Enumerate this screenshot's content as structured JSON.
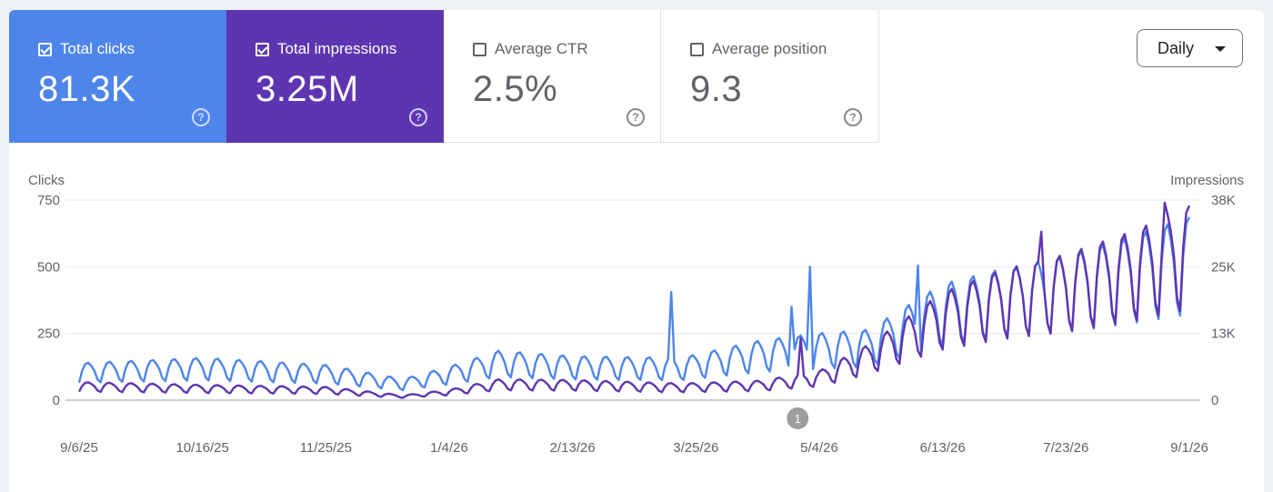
{
  "metrics": [
    {
      "label": "Total clicks",
      "value": "81.3K",
      "checked": true,
      "color": "#4e85ea"
    },
    {
      "label": "Total impressions",
      "value": "3.25M",
      "checked": true,
      "color": "#5e35b1"
    },
    {
      "label": "Average CTR",
      "value": "2.5%",
      "checked": false
    },
    {
      "label": "Average position",
      "value": "9.3",
      "checked": false
    }
  ],
  "help_glyph": "?",
  "period_select": {
    "label": "Daily"
  },
  "annotation_marker": "1",
  "chart_data": {
    "type": "line",
    "y_left_label": "Clicks",
    "y_right_label": "Impressions",
    "y_left_ticks": [
      "750",
      "500",
      "250",
      "0"
    ],
    "y_right_ticks": [
      "38K",
      "25K",
      "13K",
      "0"
    ],
    "ylim_left": [
      0,
      750
    ],
    "ylim_right": [
      0,
      38000
    ],
    "x_tick_labels": [
      "9/6/25",
      "10/16/25",
      "11/25/25",
      "1/4/26",
      "2/13/26",
      "3/25/26",
      "5/4/26",
      "6/13/26",
      "7/23/26",
      "9/1/26"
    ],
    "x_start": "2025-09-06",
    "x_end": "2026-09-01",
    "grid": true,
    "annotation_date": "2026-04-27",
    "series": [
      {
        "name": "Clicks",
        "axis": "left",
        "color": "#4e85ea",
        "anchors": [
          [
            "2025-09-06",
            105
          ],
          [
            "2025-10-16",
            120
          ],
          [
            "2025-11-25",
            100
          ],
          [
            "2025-12-20",
            60
          ],
          [
            "2026-01-04",
            95
          ],
          [
            "2026-01-20",
            140
          ],
          [
            "2026-02-13",
            125
          ],
          [
            "2026-03-20",
            120
          ],
          [
            "2026-04-15",
            170
          ],
          [
            "2026-05-04",
            190
          ],
          [
            "2026-05-20",
            200
          ],
          [
            "2026-06-13",
            330
          ],
          [
            "2026-07-01",
            370
          ],
          [
            "2026-07-23",
            410
          ],
          [
            "2026-08-15",
            470
          ],
          [
            "2026-09-01",
            520
          ]
        ],
        "spikes": [
          [
            "2026-03-17",
            405
          ],
          [
            "2026-04-25",
            350
          ],
          [
            "2026-05-01",
            500
          ],
          [
            "2026-06-05",
            505
          ]
        ]
      },
      {
        "name": "Impressions",
        "axis": "right",
        "color": "#5e35b1",
        "anchors": [
          [
            "2025-09-06",
            2600
          ],
          [
            "2025-10-16",
            2200
          ],
          [
            "2025-11-25",
            1900
          ],
          [
            "2025-12-20",
            700
          ],
          [
            "2026-01-04",
            1500
          ],
          [
            "2026-01-20",
            3000
          ],
          [
            "2026-02-13",
            2900
          ],
          [
            "2026-03-20",
            2400
          ],
          [
            "2026-04-15",
            2800
          ],
          [
            "2026-05-04",
            4200
          ],
          [
            "2026-05-20",
            8000
          ],
          [
            "2026-06-13",
            15500
          ],
          [
            "2026-07-01",
            18500
          ],
          [
            "2026-07-23",
            21000
          ],
          [
            "2026-08-15",
            24500
          ],
          [
            "2026-09-01",
            28000
          ]
        ],
        "spikes": [
          [
            "2026-04-28",
            11800
          ],
          [
            "2026-07-15",
            32000
          ],
          [
            "2026-08-24",
            37500
          ]
        ]
      }
    ]
  }
}
